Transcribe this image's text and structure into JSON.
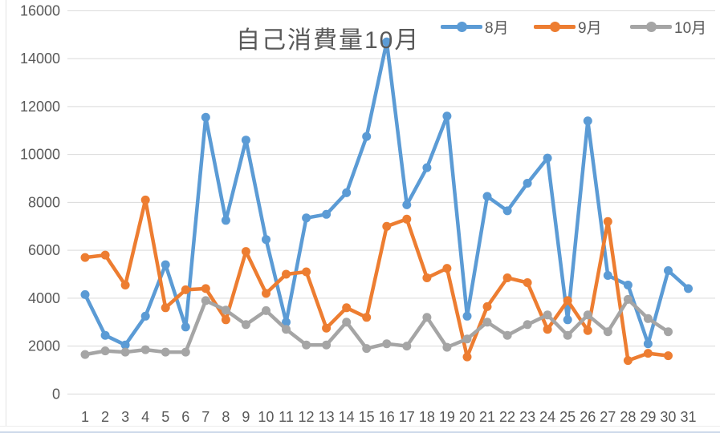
{
  "chart_data": {
    "type": "line",
    "title": "自己消費量10月",
    "xlabel": "",
    "ylabel": "",
    "x": [
      1,
      2,
      3,
      4,
      5,
      6,
      7,
      8,
      9,
      10,
      11,
      12,
      13,
      14,
      15,
      16,
      17,
      18,
      19,
      20,
      21,
      22,
      23,
      24,
      25,
      26,
      27,
      28,
      29,
      30,
      31
    ],
    "y_ticks": [
      0,
      2000,
      4000,
      6000,
      8000,
      10000,
      12000,
      14000,
      16000
    ],
    "ylim": [
      0,
      16000
    ],
    "grid": true,
    "legend_position": "top-right",
    "marker": "circle",
    "series": [
      {
        "id": "aug",
        "name": "8月",
        "color": "#5B9BD5",
        "values": [
          4150,
          2450,
          2050,
          3250,
          5400,
          2800,
          11550,
          7250,
          10600,
          6450,
          3000,
          7350,
          7500,
          8400,
          10750,
          14700,
          7900,
          9450,
          11600,
          3250,
          8250,
          7650,
          8800,
          9850,
          3100,
          11400,
          4950,
          4550,
          2100,
          5150,
          4400
        ]
      },
      {
        "id": "sep",
        "name": "9月",
        "color": "#ED7D31",
        "values": [
          5700,
          5800,
          4550,
          8100,
          3600,
          4350,
          4400,
          3100,
          5950,
          4200,
          5000,
          5100,
          2750,
          3600,
          3200,
          7000,
          7300,
          4850,
          5250,
          1550,
          3650,
          4850,
          4650,
          2700,
          3900,
          2650,
          7200,
          1400,
          1700,
          1600
        ]
      },
      {
        "id": "oct",
        "name": "10月",
        "color": "#A5A5A5",
        "values": [
          1650,
          1800,
          1750,
          1850,
          1750,
          1750,
          3900,
          3500,
          2900,
          3480,
          2700,
          2050,
          2050,
          3000,
          1900,
          2100,
          2000,
          3200,
          1950,
          2300,
          3000,
          2450,
          2900,
          3300,
          2450,
          3300,
          2600,
          3950,
          3150,
          2600
        ]
      }
    ]
  },
  "colors": {
    "text": "#595959",
    "grid": "#D9D9D9",
    "background": "#FFFFFF"
  }
}
